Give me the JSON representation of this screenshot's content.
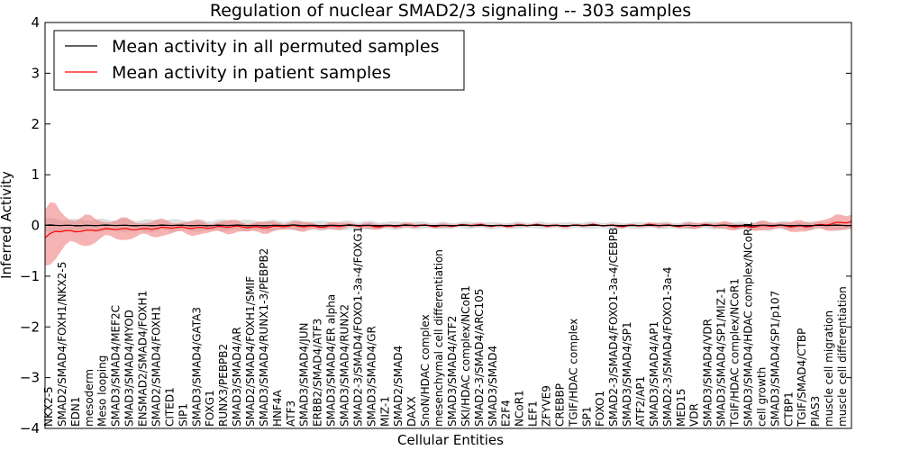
{
  "chart_data": {
    "type": "line",
    "title": "Regulation of nuclear SMAD2/3 signaling -- 303 samples",
    "xlabel": "Cellular Entities",
    "ylabel": "Inferred Activity",
    "ylim": [
      -4,
      4
    ],
    "yticks": [
      -4,
      -3,
      -2,
      -1,
      0,
      1,
      2,
      3,
      4
    ],
    "legend_position": "top-left",
    "colors": {
      "permuted": "#000000",
      "patient": "#ff0000",
      "patient_band": "#f08080",
      "permuted_band": "#c8c8c8"
    },
    "series": [
      {
        "name": "Mean activity in all permuted samples",
        "color": "#000000"
      },
      {
        "name": "Mean activity in patient samples",
        "color": "#ff0000"
      }
    ],
    "n_points": 160,
    "patient_keypoints": [
      [
        0,
        -0.25
      ],
      [
        2,
        -0.12
      ],
      [
        10,
        -0.09
      ],
      [
        20,
        -0.06
      ],
      [
        30,
        -0.04
      ],
      [
        40,
        -0.03
      ],
      [
        50,
        -0.02
      ],
      [
        60,
        -0.01
      ],
      [
        70,
        -0.01
      ],
      [
        80,
        0.0
      ],
      [
        100,
        0.0
      ],
      [
        120,
        0.0
      ],
      [
        130,
        0.0
      ],
      [
        140,
        -0.02
      ],
      [
        150,
        -0.01
      ],
      [
        155,
        0.02
      ],
      [
        159,
        0.08
      ]
    ],
    "patient_band_halfwidth": [
      [
        0,
        0.55
      ],
      [
        3,
        0.35
      ],
      [
        10,
        0.2
      ],
      [
        25,
        0.12
      ],
      [
        40,
        0.1
      ],
      [
        60,
        0.05
      ],
      [
        80,
        0.03
      ],
      [
        110,
        0.02
      ],
      [
        130,
        0.05
      ],
      [
        145,
        0.08
      ],
      [
        155,
        0.1
      ],
      [
        159,
        0.2
      ]
    ],
    "permuted_keypoints": [
      [
        0,
        0.0
      ],
      [
        159,
        0.0
      ]
    ],
    "permuted_band_halfwidth": [
      [
        0,
        0.12
      ],
      [
        40,
        0.1
      ],
      [
        80,
        0.06
      ],
      [
        120,
        0.06
      ],
      [
        159,
        0.08
      ]
    ],
    "category_labels": [
      "NKX2-5",
      "SMAD2/SMAD4/FOXH1/NKX2-5",
      "EDN1",
      "mesoderm",
      "Meso looping",
      "SMAD3/SMAD4/MEF2C",
      "SMAD3/SMAD4/MYOD",
      "ENSMAD2/SMAD4/FOXH1",
      "SMAD2/SMAD4/FOXH1",
      "CITED1",
      "SIP1",
      "SMAD3/SMAD4/GATA3",
      "FOXG1",
      "RUNX3/PEBPB2",
      "SMAD3/SMAD4/AR",
      "SMAD2/SMAD4/FOXH1/SMIF",
      "SMAD3/SMAD4/RUNX1-3/PEBPB2",
      "HNF4A",
      "ATF3",
      "SMAD3/SMAD4/JUN",
      "ERBB2/SMAD4/ATF3",
      "SMAD3/SMAD4/ER alpha",
      "SMAD3/SMAD4/RUNX2",
      "SMAD2-3/SMAD4/FOXO1-3a-4/FOXG1",
      "SMAD3/SMAD4/GR",
      "MIZ-1",
      "SMAD2/SMAD4",
      "DAXX",
      "SnoN/HDAC complex",
      "mesenchymal cell differentiation",
      "SMAD3/SMAD4/ATF2",
      "SKI/HDAC complex/NCoR1",
      "SMAD2-3/SMAD4/ARC105",
      "SMAD3/SMAD4",
      "E2F4",
      "NCoR1",
      "LEF1",
      "ZFYVE9",
      "CREBBP",
      "TGIF/HDAC complex",
      "SP1",
      "FOXO1",
      "SMAD2-3/SMAD4/FOXO1-3a-4/CEBPB",
      "SMAD3/SMAD4/SP1",
      "ATF2/AP1",
      "SMAD3/SMAD4/AP1",
      "SMAD2-3/SMAD4/FOXO1-3a-4",
      "MED15",
      "VDR",
      "SMAD3/SMAD4/VDR",
      "SMAD3/SMAD4/SP1/MIZ-1",
      "TGIF/HDAC complex/NCoR1",
      "SMAD3/SMAD4/HDAC complex/NCoR1",
      "cell growth",
      "SMAD3/SMAD4/SP1/p107",
      "CTBP1",
      "TGIF/SMAD4/CTBP",
      "PIAS3",
      "muscle cell migration",
      "muscle cell differentiation"
    ]
  }
}
